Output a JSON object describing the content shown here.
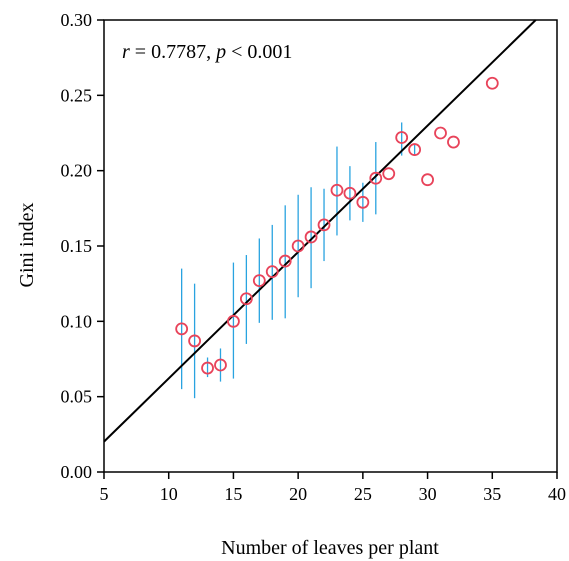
{
  "chart_data": {
    "type": "scatter",
    "title": "",
    "xlabel": "Number of leaves per plant",
    "ylabel": "Gini index",
    "xlim": [
      5,
      40
    ],
    "ylim": [
      0,
      0.3
    ],
    "xticks": [
      5,
      10,
      15,
      20,
      25,
      30,
      35,
      40
    ],
    "yticks": [
      0,
      0.05,
      0.1,
      0.15,
      0.2,
      0.25,
      0.3
    ],
    "xtick_labels": [
      "5",
      "10",
      "15",
      "20",
      "25",
      "30",
      "35",
      "40"
    ],
    "ytick_labels": [
      "0.00",
      "0.05",
      "0.10",
      "0.15",
      "0.20",
      "0.25",
      "0.30"
    ],
    "grid": false,
    "annotation": {
      "r_symbol": "r",
      "r_text": " = 0.7787, ",
      "p_symbol": "p",
      "p_text": " < 0.001"
    },
    "point_color": "#e8435a",
    "errorbar_color": "#29a3e0",
    "line_color": "#000000",
    "series": [
      {
        "x": [
          11,
          12,
          13,
          14,
          15,
          16,
          17,
          18,
          19,
          20,
          21,
          22,
          23,
          24,
          25,
          26,
          27,
          28,
          29,
          30,
          31,
          32,
          35
        ],
        "y": [
          0.095,
          0.087,
          0.069,
          0.071,
          0.1,
          0.115,
          0.127,
          0.133,
          0.14,
          0.15,
          0.156,
          0.164,
          0.187,
          0.185,
          0.179,
          0.195,
          0.198,
          0.222,
          0.214,
          0.194,
          0.225,
          0.219,
          0.258
        ],
        "y_low": [
          0.055,
          0.049,
          0.063,
          0.06,
          0.062,
          0.085,
          0.099,
          0.101,
          0.102,
          0.116,
          0.122,
          0.14,
          0.157,
          0.167,
          0.166,
          0.171,
          null,
          0.21,
          0.21,
          null,
          null,
          null,
          null
        ],
        "y_high": [
          0.135,
          0.125,
          0.076,
          0.082,
          0.139,
          0.144,
          0.155,
          0.164,
          0.177,
          0.184,
          0.189,
          0.188,
          0.216,
          0.203,
          0.192,
          0.219,
          null,
          0.232,
          0.218,
          null,
          null,
          null,
          null
        ]
      }
    ],
    "fit_line": {
      "slope": 0.00839,
      "intercept": -0.0218
    }
  }
}
